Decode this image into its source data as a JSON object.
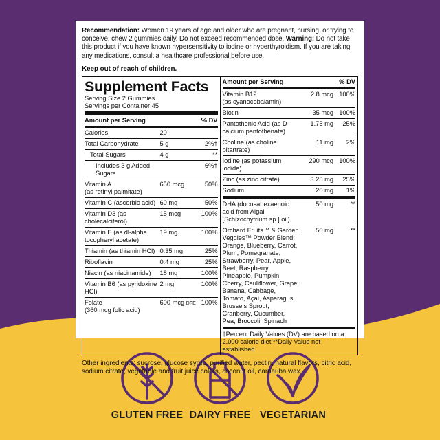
{
  "recommendation": {
    "label": "Recommendation:",
    "text": "Women 19 years of age and older who are pregnant, nursing, or trying to conceive, chew 2 gummies daily. Do not exceed recommended dose.",
    "warning_label": "Warning:",
    "warning_text": "Do not take this product if you have known hypersensitivity to iodine or hyperthyroidism. If you are taking any medications, consult a healthcare professional before use."
  },
  "keep_out": "Keep out of reach of children.",
  "facts": {
    "title": "Supplement Facts",
    "serving_size": "Serving Size 2 Gummies",
    "servings_per_container": "Servings per Container 45",
    "amount_header": "Amount per Serving",
    "dv_header": "% DV",
    "left_rows": [
      {
        "name": "Calories",
        "amount": "20",
        "dv": ""
      },
      {
        "name": "Total Carbohydrate",
        "amount": "5 g",
        "dv": "2%†"
      },
      {
        "name": "Total Sugars",
        "amount": "4 g",
        "dv": "**",
        "indent": 1
      },
      {
        "name": "Includes 3 g Added Sugars",
        "amount": "",
        "dv": "6%†",
        "indent": 2
      },
      {
        "name": "Vitamin A",
        "sub": "(as retinyl palmitate)",
        "amount": "650 mcg",
        "dv": "50%"
      },
      {
        "name": "Vitamin C (ascorbic acid)",
        "amount": "60 mg",
        "dv": "50%"
      },
      {
        "name": "Vitamin D3 (as cholecalciferol)",
        "amount": "15 mcg",
        "dv": "100%"
      },
      {
        "name": "Vitamin E (as dl-alpha tocopheryl acetate)",
        "amount": "19 mg",
        "dv": "100%"
      },
      {
        "name": "Thiamin (as thiamin HCl)",
        "amount": "0.35 mg",
        "dv": "25%"
      },
      {
        "name": "Riboflavin",
        "amount": "0.4 mg",
        "dv": "25%"
      },
      {
        "name": "Niacin (as niacinamide)",
        "amount": "18 mg",
        "dv": "100%"
      },
      {
        "name": "Vitamin B6 (as pyridoxine HCl)",
        "amount": "2 mg",
        "dv": "100%"
      },
      {
        "name": "Folate",
        "amount": "600 mcg",
        "unit": "DFE",
        "sub": "(360 mcg folic acid)",
        "dv": "100%"
      }
    ],
    "right_rows": [
      {
        "name": "Vitamin B12",
        "sub": "(as cyanocobalamin)",
        "amount": "2.8 mcg",
        "dv": "100%"
      },
      {
        "name": "Biotin",
        "amount": "35 mcg",
        "dv": "100%"
      },
      {
        "name": "Pantothenic Acid (as D-calcium pantothenate)",
        "amount": "1.75 mg",
        "dv": "25%"
      },
      {
        "name": "Choline (as choline bitartrate)",
        "amount": "11 mg",
        "dv": "2%"
      },
      {
        "name": "Iodine (as potassium iodide)",
        "amount": "290 mcg",
        "dv": "100%"
      },
      {
        "name": "Zinc (as zinc citrate)",
        "amount": "3.25 mg",
        "dv": "25%"
      },
      {
        "name": "Sodium",
        "amount": "20 mg",
        "dv": "1%"
      },
      {
        "name": "DHA (docosahexaenoic acid from Algal [Schizochytrium sp.] oil)",
        "amount": "50 mg",
        "dv": "**"
      },
      {
        "name": "Orchard Fruits™ & Garden Veggies™ Powder Blend: Orange, Blueberry, Carrot, Plum, Pomegranate, Strawberry, Pear, Apple, Beet, Raspberry, Pineapple, Pumpkin, Cherry, Cauliflower, Grape, Banana, Cabbage, Tomato, Açaí, Asparagus, Brussels Sprout, Cranberry, Cucumber, Pea, Broccoli, Spinach",
        "amount": "50 mg",
        "dv": "**"
      }
    ],
    "footnote": "†Percent Daily Values (DV) are based on a 2,000 calorie diet.**Daily Value not established."
  },
  "other_ingredients": "Other ingredients: sucrose, glucose syrup, purified water, pectin, natural flavors, citric acid, sodium citrate, vegetable and fruit juice colors, coconut oil, carnauba wax",
  "badges": [
    "GLUTEN FREE",
    "DAIRY FREE",
    "VEGETARIAN"
  ]
}
